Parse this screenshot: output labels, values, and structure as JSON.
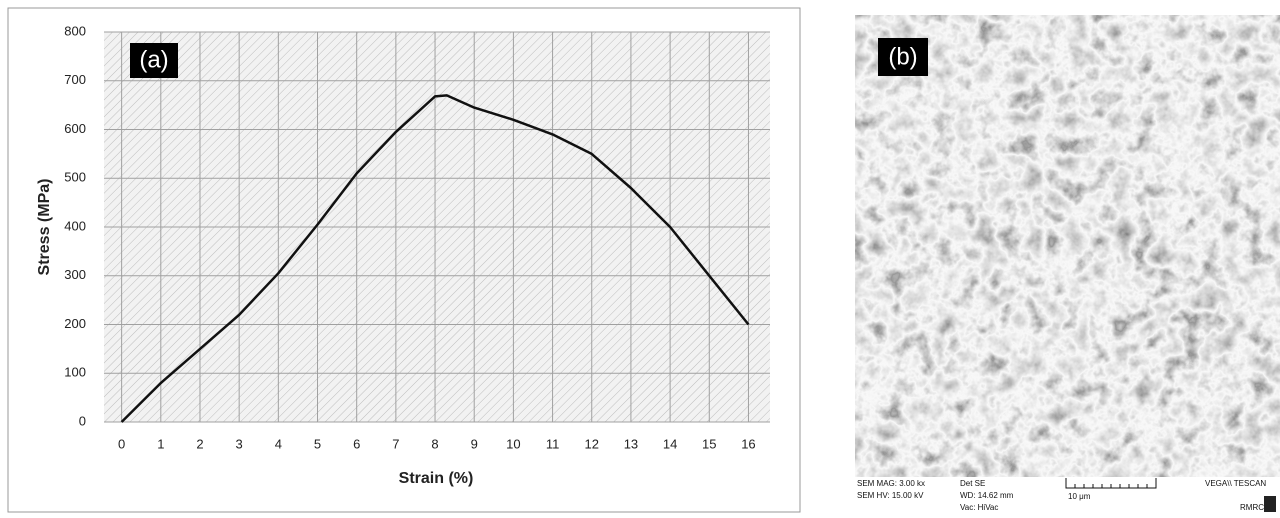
{
  "chart_data": {
    "type": "line",
    "x": [
      0,
      1,
      2,
      3,
      4,
      5,
      6,
      7,
      8,
      8.3,
      9,
      10,
      11,
      12,
      13,
      14,
      15,
      16
    ],
    "values": [
      0,
      80,
      150,
      220,
      305,
      405,
      510,
      595,
      668,
      670,
      645,
      620,
      590,
      550,
      480,
      400,
      300,
      200
    ],
    "color": "#111111",
    "xlabel": "Strain (%)",
    "ylabel": "Stress (MPa)",
    "xlim": [
      -0.45,
      16.55
    ],
    "ylim": [
      0,
      800
    ],
    "xticks": [
      0,
      1,
      2,
      3,
      4,
      5,
      6,
      7,
      8,
      9,
      10,
      11,
      12,
      13,
      14,
      15,
      16
    ],
    "yticks": [
      0,
      100,
      200,
      300,
      400,
      500,
      600,
      700,
      800
    ],
    "grid": true,
    "annotations": [
      "(a)"
    ]
  },
  "sem_image": {
    "label": "(b)",
    "info": [
      "SEM MAG: 3.00 kx",
      "SEM HV: 15.00 kV",
      "Det SE",
      "WD: 14.62 mm",
      "Vac: HiVac"
    ],
    "scale_bar": "10 μm",
    "brand": "VEGA\\\\ TESCAN",
    "logo": "RMRC"
  }
}
